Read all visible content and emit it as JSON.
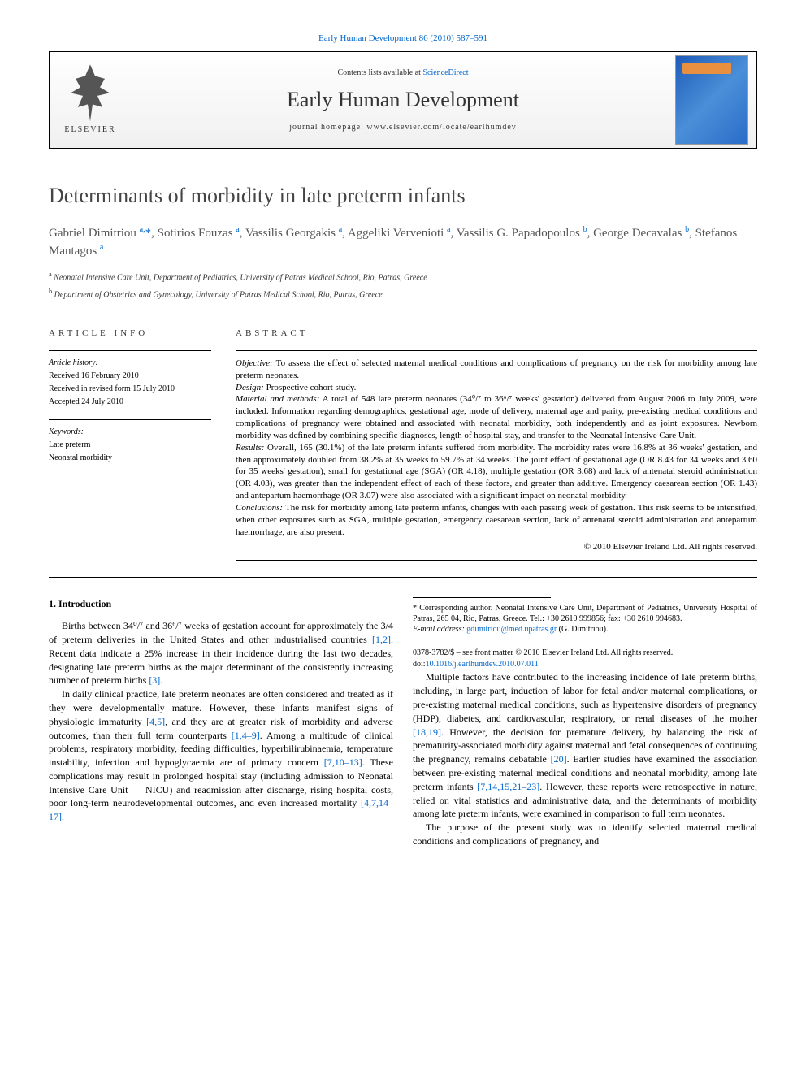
{
  "top_citation": "Early Human Development 86 (2010) 587–591",
  "header": {
    "contents_prefix": "Contents lists available at ",
    "contents_link": "ScienceDirect",
    "journal": "Early Human Development",
    "homepage_prefix": "journal homepage: ",
    "homepage": "www.elsevier.com/locate/earlhumdev",
    "publisher": "ELSEVIER"
  },
  "title": "Determinants of morbidity in late preterm infants",
  "authors_html": "Gabriel Dimitriou <sup>a,</sup><span class='star'>*</span>, Sotirios Fouzas <sup>a</sup>, Vassilis Georgakis <sup>a</sup>, Aggeliki Vervenioti <sup>a</sup>, Vassilis G. Papadopoulos <sup>b</sup>, George Decavalas <sup>b</sup>, Stefanos Mantagos <sup>a</sup>",
  "affiliations": {
    "a": "Neonatal Intensive Care Unit, Department of Pediatrics, University of Patras Medical School, Rio, Patras, Greece",
    "b": "Department of Obstetrics and Gynecology, University of Patras Medical School, Rio, Patras, Greece"
  },
  "article_info": {
    "heading": "ARTICLE INFO",
    "history_label": "Article history:",
    "received": "Received 16 February 2010",
    "revised": "Received in revised form 15 July 2010",
    "accepted": "Accepted 24 July 2010",
    "keywords_label": "Keywords:",
    "kw1": "Late preterm",
    "kw2": "Neonatal morbidity"
  },
  "abstract": {
    "heading": "ABSTRACT",
    "objective_label": "Objective:",
    "objective": " To assess the effect of selected maternal medical conditions and complications of pregnancy on the risk for morbidity among late preterm neonates.",
    "design_label": "Design:",
    "design": " Prospective cohort study.",
    "mm_label": "Material and methods:",
    "mm": " A total of 548 late preterm neonates (34⁰/⁷ to 36⁶/⁷ weeks' gestation) delivered from August 2006 to July 2009, were included. Information regarding demographics, gestational age, mode of delivery, maternal age and parity, pre-existing medical conditions and complications of pregnancy were obtained and associated with neonatal morbidity, both independently and as joint exposures. Newborn morbidity was defined by combining specific diagnoses, length of hospital stay, and transfer to the Neonatal Intensive Care Unit.",
    "results_label": "Results:",
    "results": " Overall, 165 (30.1%) of the late preterm infants suffered from morbidity. The morbidity rates were 16.8% at 36 weeks' gestation, and then approximately doubled from 38.2% at 35 weeks to 59.7% at 34 weeks. The joint effect of gestational age (OR 8.43 for 34 weeks and 3.60 for 35 weeks' gestation), small for gestational age (SGA) (OR 4.18), multiple gestation (OR 3.68) and lack of antenatal steroid administration (OR 4.03), was greater than the independent effect of each of these factors, and greater than additive. Emergency caesarean section (OR 1.43) and antepartum haemorrhage (OR 3.07) were also associated with a significant impact on neonatal morbidity.",
    "conclusions_label": "Conclusions:",
    "conclusions": " The risk for morbidity among late preterm infants, changes with each passing week of gestation. This risk seems to be intensified, when other exposures such as SGA, multiple gestation, emergency caesarean section, lack of antenatal steroid administration and antepartum haemorrhage, are also present.",
    "copyright": "© 2010 Elsevier Ireland Ltd. All rights reserved."
  },
  "body": {
    "section1_heading": "1. Introduction",
    "p1_a": "Births between 34⁰/⁷ and 36⁶/⁷ weeks of gestation account for approximately the 3/4 of preterm deliveries in the United States and other industrialised countries ",
    "p1_link1": "[1,2]",
    "p1_b": ". Recent data indicate a 25% increase in their incidence during the last two decades, designating late preterm births as the major determinant of the consistently increasing number of preterm births ",
    "p1_link2": "[3]",
    "p1_c": ".",
    "p2_a": "In daily clinical practice, late preterm neonates are often considered and treated as if they were developmentally mature. However, these infants manifest signs of physiologic immaturity ",
    "p2_link1": "[4,5]",
    "p2_b": ", and they are at greater risk of morbidity and adverse outcomes, than their full term counterparts ",
    "p2_link2": "[1,4–9]",
    "p2_c": ". Among a multitude of clinical problems, respiratory morbidity, feeding difficulties, hyperbilirubinaemia, temperature instability, infection and hypoglycaemia are of primary concern ",
    "p2_link3": "[7,10–13]",
    "p2_d": ". These complications may result in prolonged hospital stay (including admission to Neonatal Intensive Care Unit — NICU) and readmission after discharge, rising hospital costs, poor long-term neurodevelopmental outcomes, and even increased mortality ",
    "p2_link4": "[4,7,14–17]",
    "p2_e": ".",
    "p3_a": "Multiple factors have contributed to the increasing incidence of late preterm births, including, in large part, induction of labor for fetal and/or maternal complications, or pre-existing maternal medical conditions, such as hypertensive disorders of pregnancy (HDP), diabetes, and cardiovascular, respiratory, or renal diseases of the mother ",
    "p3_link1": "[18,19]",
    "p3_b": ". However, the decision for premature delivery, by balancing the risk of prematurity-associated morbidity against maternal and fetal consequences of continuing the pregnancy, remains debatable ",
    "p3_link2": "[20]",
    "p3_c": ". Earlier studies have examined the association between pre-existing maternal medical conditions and neonatal morbidity, among late preterm infants ",
    "p3_link3": "[7,14,15,21–23]",
    "p3_d": ". However, these reports were retrospective in nature, relied on vital statistics and administrative data, and the determinants of morbidity among late preterm infants, were examined in comparison to full term neonates.",
    "p4": "The purpose of the present study was to identify selected maternal medical conditions and complications of pregnancy, and"
  },
  "footnote": {
    "corr_label": "* Corresponding author. ",
    "corr_text": "Neonatal Intensive Care Unit, Department of Pediatrics, University Hospital of Patras, 265 04, Rio, Patras, Greece. Tel.: +30 2610 999856; fax: +30 2610 994683.",
    "email_label": "E-mail address: ",
    "email": "gdimitriou@med.upatras.gr",
    "email_suffix": " (G. Dimitriou)."
  },
  "bottom": {
    "issn": "0378-3782/$ – see front matter © 2010 Elsevier Ireland Ltd. All rights reserved.",
    "doi_prefix": "doi:",
    "doi": "10.1016/j.earlhumdev.2010.07.011"
  },
  "colors": {
    "link": "#0066cc",
    "text": "#000000",
    "heading": "#444444"
  }
}
